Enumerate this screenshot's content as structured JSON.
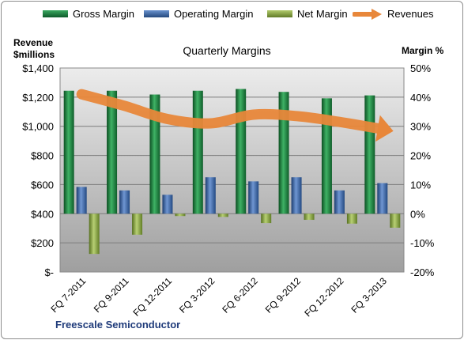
{
  "legend": {
    "gross": "Gross Margin",
    "operating": "Operating Margin",
    "net": "Net Margin",
    "revenues": "Revenues"
  },
  "left_axis_title": [
    "Revenue",
    "$millions"
  ],
  "right_axis_title": "Margin %",
  "footer": "Freescale Semiconductor",
  "colors": {
    "gross": "#1f7a3e",
    "operating": "#3b64a6",
    "net": "#8aa63e",
    "revenues": "#e8873a",
    "plot_bg_top": "#e6e6e6",
    "plot_bg_bottom": "#a8a8a8"
  },
  "chart_data": {
    "type": "bar",
    "title": "Quarterly Margins",
    "categories": [
      "FQ 7-2011",
      "FQ 9-2011",
      "FQ 12-2011",
      "FQ 3-2012",
      "FQ 6-2012",
      "FQ 9-2012",
      "FQ 12-2012",
      "FQ 3-2013"
    ],
    "series": [
      {
        "name": "Gross Margin",
        "axis": "right",
        "kind": "bar",
        "values": [
          42.2,
          42.2,
          40.9,
          42.2,
          42.8,
          41.8,
          39.6,
          40.6
        ]
      },
      {
        "name": "Operating Margin",
        "axis": "right",
        "kind": "bar",
        "values": [
          9.2,
          8.0,
          6.5,
          12.5,
          11.1,
          12.5,
          8.0,
          10.5
        ]
      },
      {
        "name": "Net Margin",
        "axis": "right",
        "kind": "bar",
        "values": [
          -13.8,
          -7.2,
          -0.8,
          -1.1,
          -3.2,
          -2.1,
          -3.4,
          -4.8
        ]
      },
      {
        "name": "Revenues",
        "axis": "left",
        "kind": "line",
        "values": [
          1220,
          1140,
          1050,
          1020,
          1080,
          1070,
          1030,
          980
        ]
      }
    ],
    "left_axis": {
      "ylim": [
        0,
        1400
      ],
      "ticks": [
        "$-",
        "$200",
        "$400",
        "$600",
        "$800",
        "$1,000",
        "$1,200",
        "$1,400"
      ]
    },
    "right_axis": {
      "ylim": [
        -20,
        50
      ],
      "ticks": [
        "-20%",
        "-10%",
        "0%",
        "10%",
        "20%",
        "30%",
        "40%",
        "50%"
      ]
    },
    "grid": true,
    "legend_position": "top"
  }
}
